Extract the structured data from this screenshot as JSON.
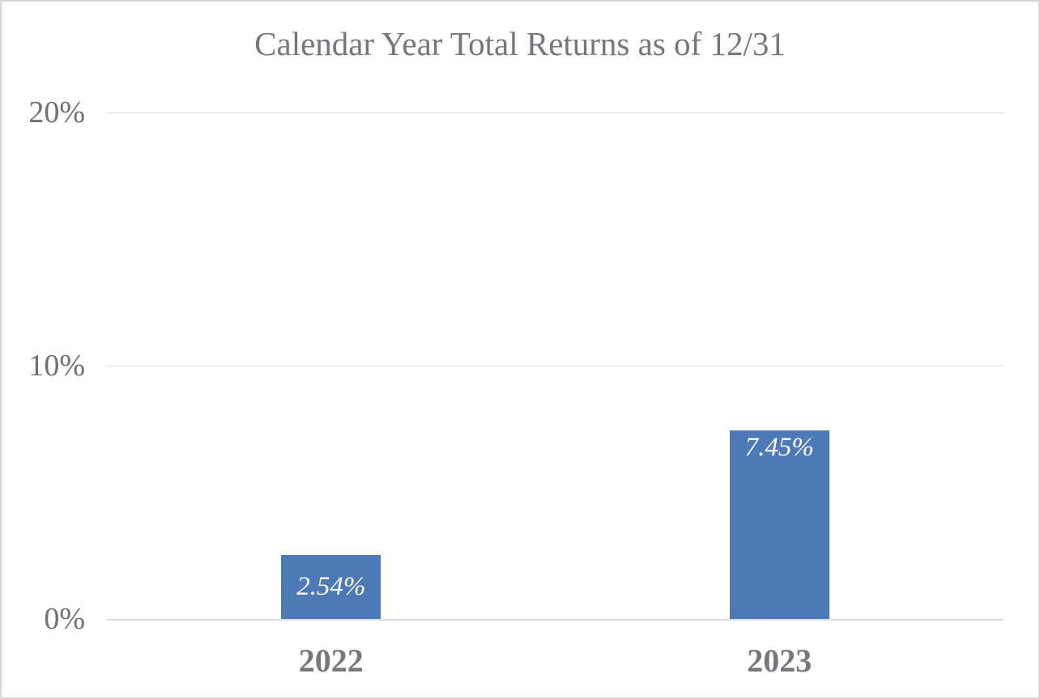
{
  "page": {
    "background": "#ffffff",
    "border_color": "#d6d6d9"
  },
  "chart_data": {
    "type": "bar",
    "title": "Calendar Year Total Returns as of 12/31",
    "categories": [
      "2022",
      "2023"
    ],
    "values": [
      2.54,
      7.45
    ],
    "value_labels": [
      "2.54%",
      "7.45%"
    ],
    "yticks": [
      {
        "value": 0,
        "label": "0%"
      },
      {
        "value": 10,
        "label": "10%"
      },
      {
        "value": 20,
        "label": "20%"
      }
    ],
    "ylim": [
      0,
      20
    ],
    "xlabel": "",
    "ylabel": "",
    "grid": true,
    "legend": false,
    "bar_color": "#4d7ab6",
    "value_label_color": "#ffffff",
    "text_color": "#76767b",
    "gridline_color": "#e2e2e2"
  }
}
